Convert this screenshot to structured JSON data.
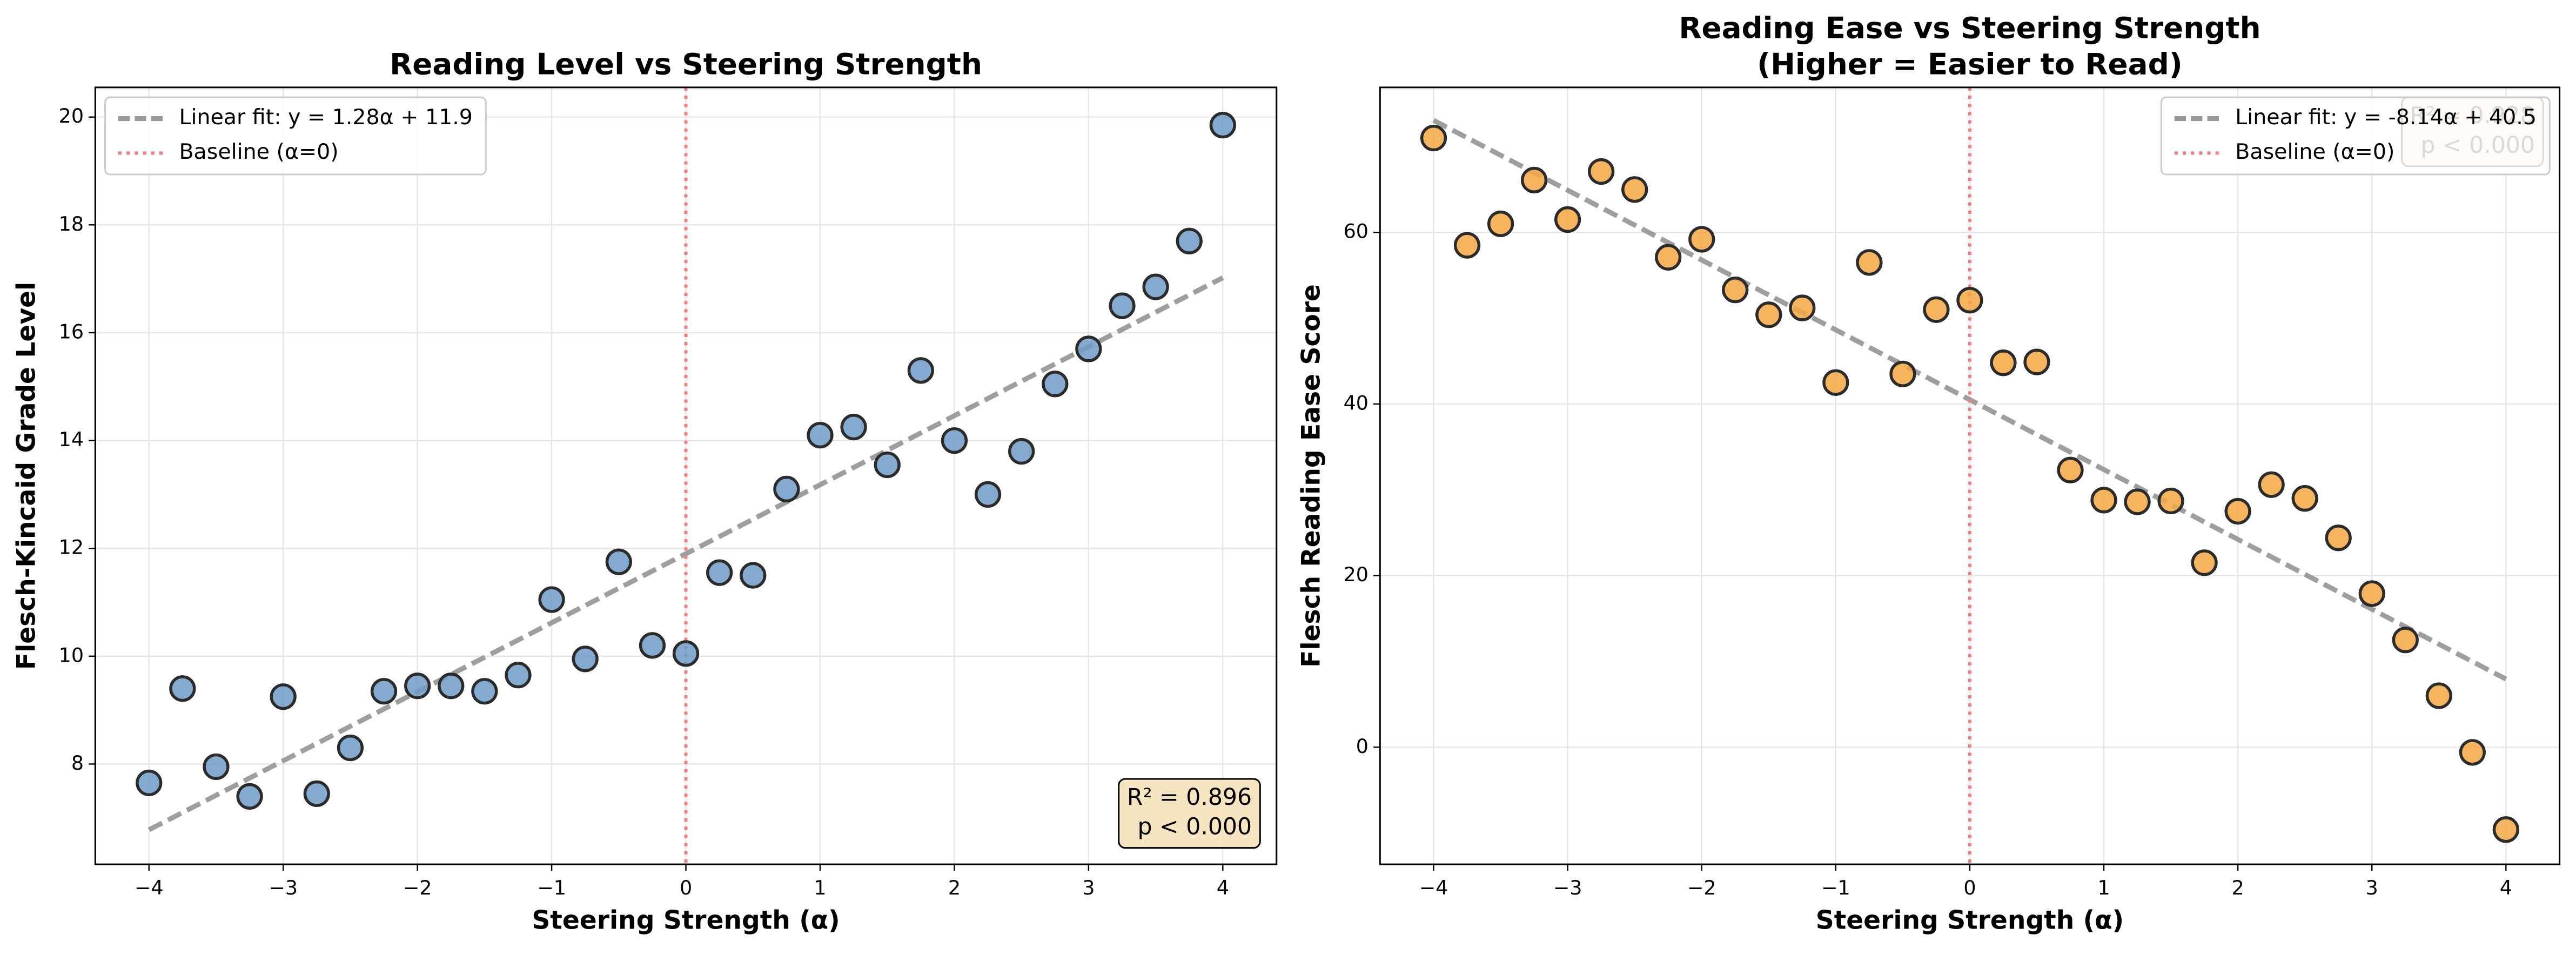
{
  "chart_data": [
    {
      "type": "scatter",
      "title": [
        "Reading Level vs Steering Strength"
      ],
      "xlabel": "Steering Strength (α)",
      "ylabel": "Flesch-Kincaid Grade Level",
      "x": [
        -4,
        -3.75,
        -3.5,
        -3.25,
        -3,
        -2.75,
        -2.5,
        -2.25,
        -2,
        -1.75,
        -1.5,
        -1.25,
        -1,
        -0.75,
        -0.5,
        -0.25,
        0,
        0.25,
        0.5,
        0.75,
        1,
        1.25,
        1.5,
        1.75,
        2,
        2.25,
        2.5,
        2.75,
        3,
        3.25,
        3.5,
        3.75,
        4
      ],
      "values": [
        7.65,
        9.4,
        7.95,
        7.4,
        9.25,
        7.45,
        8.3,
        9.35,
        9.45,
        9.45,
        9.35,
        9.65,
        11.05,
        9.95,
        11.75,
        10.2,
        10.05,
        11.55,
        11.5,
        13.1,
        14.1,
        14.25,
        13.55,
        15.3,
        14.0,
        13.0,
        13.8,
        15.05,
        15.7,
        16.5,
        16.85,
        17.7,
        19.85
      ],
      "color": "#6f9bc8",
      "fit": {
        "label": "Linear fit: y = 1.28α + 11.9",
        "x": [
          -4,
          4
        ],
        "y": [
          6.78,
          17.02
        ],
        "color": "#999999"
      },
      "baseline": {
        "label": "Baseline (α=0)",
        "x": 0,
        "color": "#f08080"
      },
      "annotation": [
        "R² = 0.896",
        "p < 0.000"
      ],
      "annotation_corner": "lower right",
      "legend": "upper left",
      "grid": true,
      "xlim": [
        -4.4,
        4.4
      ],
      "ylim": [
        6.14,
        20.55
      ],
      "xticks": [
        {
          "value": -4,
          "label": "−4"
        },
        {
          "value": -3,
          "label": "−3"
        },
        {
          "value": -2,
          "label": "−2"
        },
        {
          "value": -1,
          "label": "−1"
        },
        0,
        1,
        2,
        3,
        4
      ],
      "yticks": [
        8,
        10,
        12,
        14,
        16,
        18,
        20
      ]
    },
    {
      "type": "scatter",
      "title": [
        "Reading Ease vs Steering Strength",
        "(Higher = Easier to Read)"
      ],
      "xlabel": "Steering Strength (α)",
      "ylabel": "Flesch Reading Ease Score",
      "x": [
        -4,
        -3.75,
        -3.5,
        -3.25,
        -3,
        -2.75,
        -2.5,
        -2.25,
        -2,
        -1.75,
        -1.5,
        -1.25,
        -1,
        -0.75,
        -0.5,
        -0.25,
        0,
        0.25,
        0.5,
        0.75,
        1,
        1.25,
        1.5,
        1.75,
        2,
        2.25,
        2.5,
        2.75,
        3,
        3.25,
        3.5,
        3.75,
        4
      ],
      "values": [
        71,
        58.5,
        61,
        66.1,
        61.5,
        67.1,
        65,
        57.1,
        59.2,
        53.3,
        50.4,
        51.2,
        42.5,
        56.5,
        43.5,
        51,
        52.1,
        44.8,
        44.9,
        32.3,
        28.8,
        28.6,
        28.7,
        21.5,
        27.5,
        30.6,
        29,
        24.4,
        17.9,
        12.5,
        6,
        -0.6,
        -9.6
      ],
      "color": "#f5a742",
      "fit": {
        "label": "Linear fit: y = -8.14α + 40.5",
        "x": [
          -4,
          4
        ],
        "y": [
          73.06,
          7.94
        ],
        "color": "#999999"
      },
      "baseline": {
        "label": "Baseline (α=0)",
        "x": 0,
        "color": "#f08080"
      },
      "annotation": [
        "R² = 0.928",
        "p < 0.000"
      ],
      "annotation_corner": "upper right",
      "legend": "upper right",
      "grid": true,
      "xlim": [
        -4.4,
        4.4
      ],
      "ylim": [
        -13.65,
        76.9
      ],
      "xticks": [
        {
          "value": -4,
          "label": "−4"
        },
        {
          "value": -3,
          "label": "−3"
        },
        {
          "value": -2,
          "label": "−2"
        },
        {
          "value": -1,
          "label": "−1"
        },
        0,
        1,
        2,
        3,
        4
      ],
      "yticks": [
        0,
        20,
        40,
        60
      ]
    }
  ]
}
